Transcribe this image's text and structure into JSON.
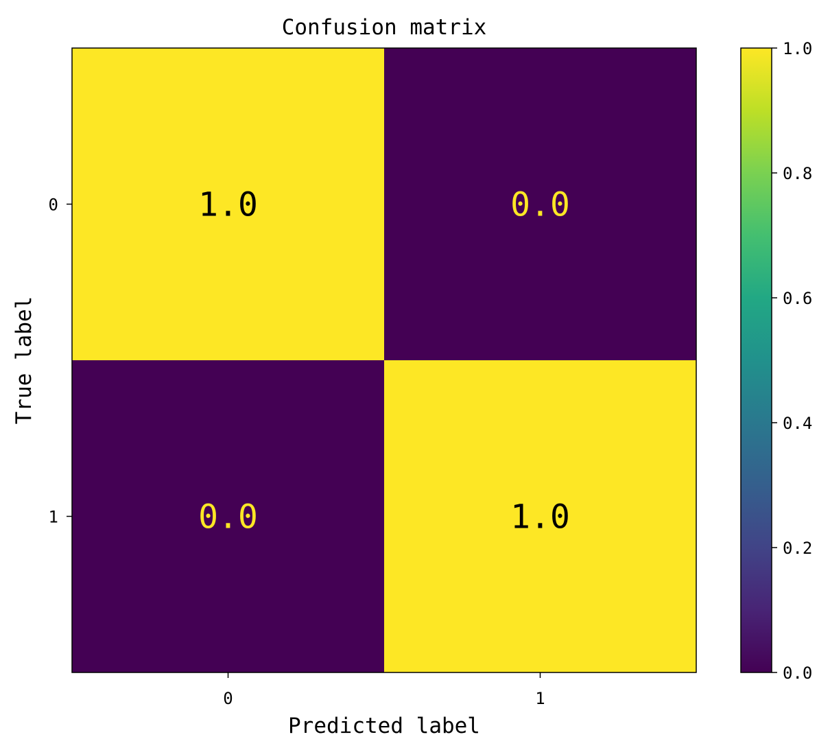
{
  "chart_data": {
    "type": "heatmap",
    "title": "Confusion matrix",
    "xlabel": "Predicted label",
    "ylabel": "True label",
    "x_categories": [
      "0",
      "1"
    ],
    "y_categories": [
      "0",
      "1"
    ],
    "values": [
      [
        1.0,
        0.0
      ],
      [
        0.0,
        1.0
      ]
    ],
    "cell_labels": [
      [
        "1.0",
        "0.0"
      ],
      [
        "0.0",
        "1.0"
      ]
    ],
    "colormap": "viridis",
    "colorbar": {
      "range": [
        0.0,
        1.0
      ],
      "ticks": [
        "0.0",
        "0.2",
        "0.4",
        "0.6",
        "0.8",
        "1.0"
      ]
    },
    "colors": {
      "high": "#fde725",
      "low": "#440154",
      "text_on_high": "#000000",
      "text_on_low": "#fde725"
    }
  }
}
